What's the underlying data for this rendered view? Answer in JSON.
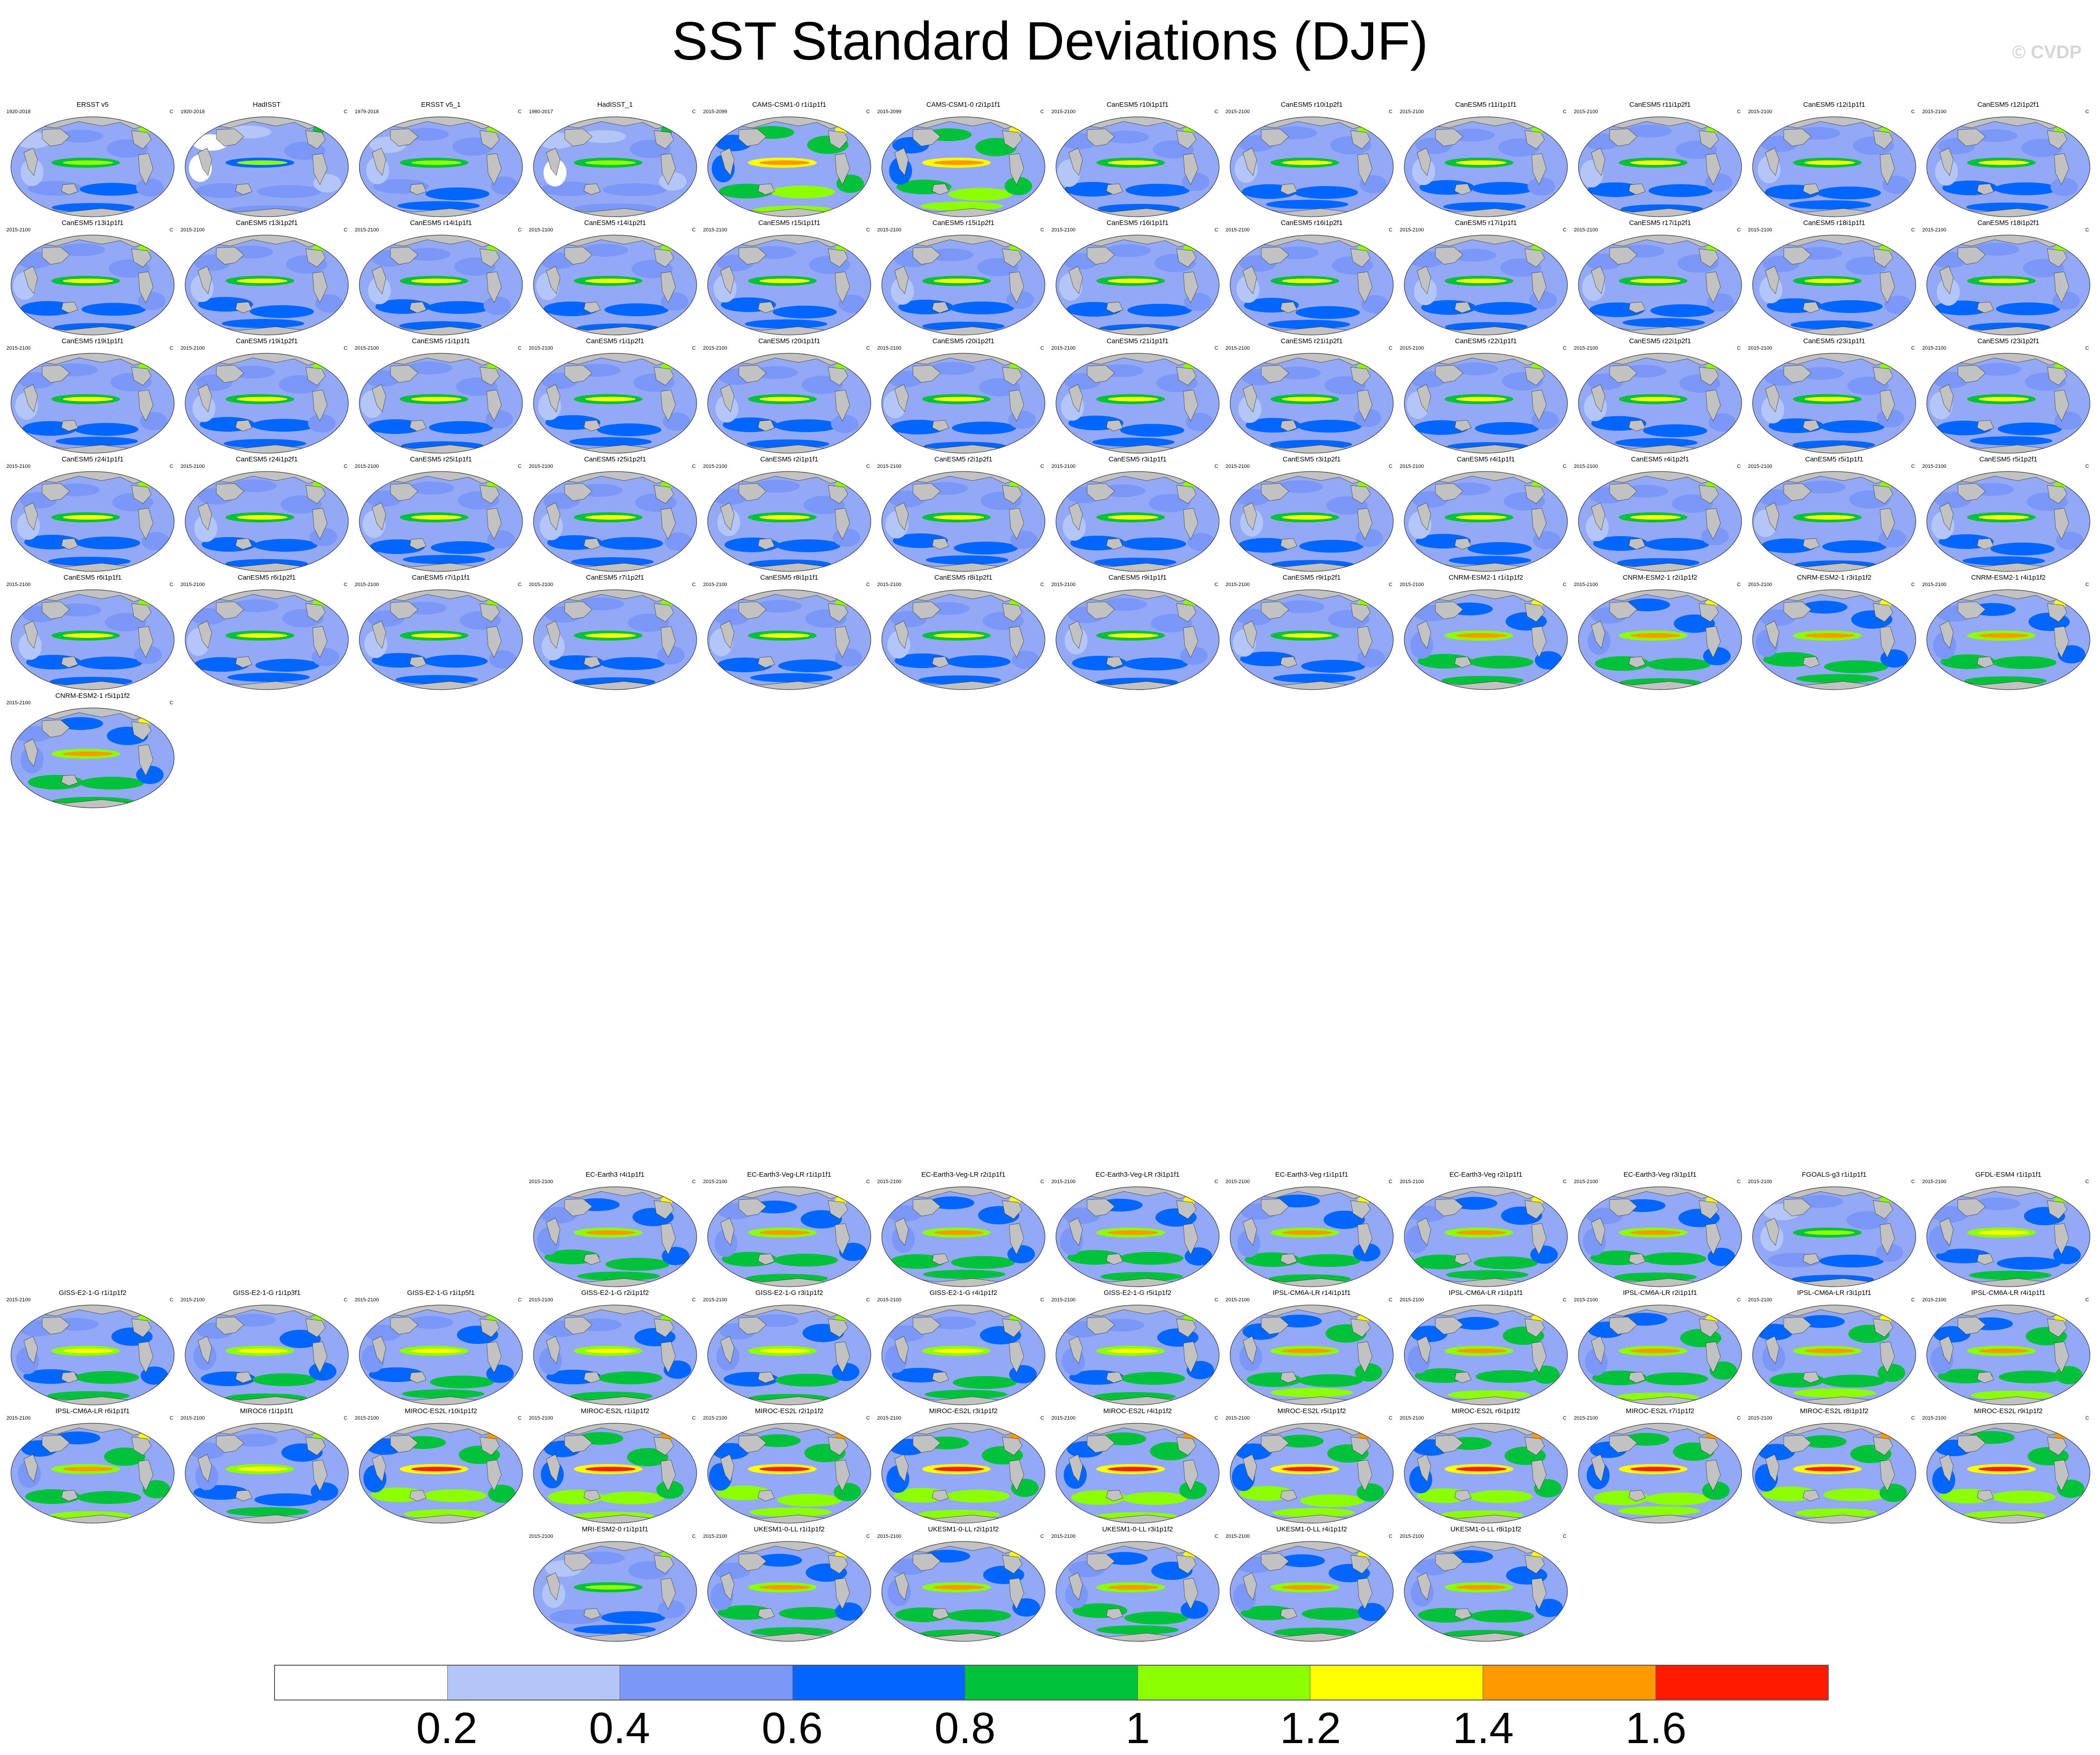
{
  "title": "SST Standard Deviations (DJF)",
  "watermark": "© CVDP",
  "unit": "C",
  "map_colors": {
    "land": "#c2c2c2",
    "ocean_base": "#93a9f5",
    "outline": "#333333"
  },
  "colorbar": {
    "colors": [
      "#ffffff",
      "#b3c6f7",
      "#7b97f8",
      "#0066ff",
      "#00c23a",
      "#8cff00",
      "#ffff00",
      "#ff9900",
      "#ff1a00"
    ],
    "labels": [
      "0.2",
      "0.4",
      "0.6",
      "0.8",
      "1",
      "1.2",
      "1.4",
      "1.6"
    ]
  },
  "groups": [
    {
      "panels": [
        {
          "title": "ERSST v5",
          "period": "1920-2018",
          "level": 0.4
        },
        {
          "title": "HadISST",
          "period": "1920-2018",
          "level": 0.3
        },
        {
          "title": "ERSST v5_1",
          "period": "1979-2018",
          "level": 0.4
        },
        {
          "title": "HadISST_1",
          "period": "1980-2017",
          "level": 0.35
        },
        {
          "title": "CAMS-CSM1-0 r1i1p1f1",
          "period": "2015-2099",
          "level": 0.8
        },
        {
          "title": "CAMS-CSM1-0 r2i1p1f1",
          "period": "2015-2099",
          "level": 0.8
        },
        {
          "title": "CanESM5 r10i1p1f1",
          "period": "2015-2100",
          "level": 0.5
        },
        {
          "title": "CanESM5 r10i1p2f1",
          "period": "2015-2100",
          "level": 0.5
        },
        {
          "title": "CanESM5 r11i1p1f1",
          "period": "2015-2100",
          "level": 0.5
        },
        {
          "title": "CanESM5 r11i1p2f1",
          "period": "2015-2100",
          "level": 0.5
        },
        {
          "title": "CanESM5 r12i1p1f1",
          "period": "2015-2100",
          "level": 0.5
        },
        {
          "title": "CanESM5 r12i1p2f1",
          "period": "2015-2100",
          "level": 0.5
        },
        {
          "title": "CanESM5 r13i1p1f1",
          "period": "2015-2100",
          "level": 0.5
        },
        {
          "title": "CanESM5 r13i1p2f1",
          "period": "2015-2100",
          "level": 0.5
        },
        {
          "title": "CanESM5 r14i1p1f1",
          "period": "2015-2100",
          "level": 0.5
        },
        {
          "title": "CanESM5 r14i1p2f1",
          "period": "2015-2100",
          "level": 0.5
        },
        {
          "title": "CanESM5 r15i1p1f1",
          "period": "2015-2100",
          "level": 0.5
        },
        {
          "title": "CanESM5 r15i1p2f1",
          "period": "2015-2100",
          "level": 0.5
        },
        {
          "title": "CanESM5 r16i1p1f1",
          "period": "2015-2100",
          "level": 0.5
        },
        {
          "title": "CanESM5 r16i1p2f1",
          "period": "2015-2100",
          "level": 0.5
        },
        {
          "title": "CanESM5 r17i1p1f1",
          "period": "2015-2100",
          "level": 0.5
        },
        {
          "title": "CanESM5 r17i1p2f1",
          "period": "2015-2100",
          "level": 0.5
        },
        {
          "title": "CanESM5 r18i1p1f1",
          "period": "2015-2100",
          "level": 0.5
        },
        {
          "title": "CanESM5 r18i1p2f1",
          "period": "2015-2100",
          "level": 0.5
        },
        {
          "title": "CanESM5 r19i1p1f1",
          "period": "2015-2100",
          "level": 0.5
        },
        {
          "title": "CanESM5 r19i1p2f1",
          "period": "2015-2100",
          "level": 0.5
        },
        {
          "title": "CanESM5 r1i1p1f1",
          "period": "2015-2100",
          "level": 0.5
        },
        {
          "title": "CanESM5 r1i1p2f1",
          "period": "2015-2100",
          "level": 0.5
        },
        {
          "title": "CanESM5 r20i1p1f1",
          "period": "2015-2100",
          "level": 0.5
        },
        {
          "title": "CanESM5 r20i1p2f1",
          "period": "2015-2100",
          "level": 0.5
        },
        {
          "title": "CanESM5 r21i1p1f1",
          "period": "2015-2100",
          "level": 0.5
        },
        {
          "title": "CanESM5 r21i1p2f1",
          "period": "2015-2100",
          "level": 0.5
        },
        {
          "title": "CanESM5 r22i1p1f1",
          "period": "2015-2100",
          "level": 0.5
        },
        {
          "title": "CanESM5 r22i1p2f1",
          "period": "2015-2100",
          "level": 0.5
        },
        {
          "title": "CanESM5 r23i1p1f1",
          "period": "2015-2100",
          "level": 0.5
        },
        {
          "title": "CanESM5 r23i1p2f1",
          "period": "2015-2100",
          "level": 0.5
        },
        {
          "title": "CanESM5 r24i1p1f1",
          "period": "2015-2100",
          "level": 0.5
        },
        {
          "title": "CanESM5 r24i1p2f1",
          "period": "2015-2100",
          "level": 0.5
        },
        {
          "title": "CanESM5 r25i1p1f1",
          "period": "2015-2100",
          "level": 0.5
        },
        {
          "title": "CanESM5 r25i1p2f1",
          "period": "2015-2100",
          "level": 0.5
        },
        {
          "title": "CanESM5 r2i1p1f1",
          "period": "2015-2100",
          "level": 0.5
        },
        {
          "title": "CanESM5 r2i1p2f1",
          "period": "2015-2100",
          "level": 0.5
        },
        {
          "title": "CanESM5 r3i1p1f1",
          "period": "2015-2100",
          "level": 0.5
        },
        {
          "title": "CanESM5 r3i1p2f1",
          "period": "2015-2100",
          "level": 0.5
        },
        {
          "title": "CanESM5 r4i1p1f1",
          "period": "2015-2100",
          "level": 0.5
        },
        {
          "title": "CanESM5 r4i1p2f1",
          "period": "2015-2100",
          "level": 0.5
        },
        {
          "title": "CanESM5 r5i1p1f1",
          "period": "2015-2100",
          "level": 0.5
        },
        {
          "title": "CanESM5 r5i1p2f1",
          "period": "2015-2100",
          "level": 0.5
        },
        {
          "title": "CanESM5 r6i1p1f1",
          "period": "2015-2100",
          "level": 0.5
        },
        {
          "title": "CanESM5 r6i1p2f1",
          "period": "2015-2100",
          "level": 0.5
        },
        {
          "title": "CanESM5 r7i1p1f1",
          "period": "2015-2100",
          "level": 0.5
        },
        {
          "title": "CanESM5 r7i1p2f1",
          "period": "2015-2100",
          "level": 0.5
        },
        {
          "title": "CanESM5 r8i1p1f1",
          "period": "2015-2100",
          "level": 0.5
        },
        {
          "title": "CanESM5 r8i1p2f1",
          "period": "2015-2100",
          "level": 0.5
        },
        {
          "title": "CanESM5 r9i1p1f1",
          "period": "2015-2100",
          "level": 0.5
        },
        {
          "title": "CanESM5 r9i1p2f1",
          "period": "2015-2100",
          "level": 0.5
        },
        {
          "title": "CNRM-ESM2-1 r1i1p1f2",
          "period": "2015-2100",
          "level": 0.7
        },
        {
          "title": "CNRM-ESM2-1 r2i1p1f2",
          "period": "2015-2100",
          "level": 0.7
        },
        {
          "title": "CNRM-ESM2-1 r3i1p1f2",
          "period": "2015-2100",
          "level": 0.7
        },
        {
          "title": "CNRM-ESM2-1 r4i1p1f2",
          "period": "2015-2100",
          "level": 0.7
        },
        {
          "title": "CNRM-ESM2-1 r5i1p1f2",
          "period": "2015-2100",
          "level": 0.7
        }
      ]
    },
    {
      "panels": [
        {
          "title": "EC-Earth3 r4i1p1f1",
          "period": "2015-2100",
          "level": 0.7
        },
        {
          "title": "EC-Earth3-Veg-LR r1i1p1f1",
          "period": "2015-2100",
          "level": 0.7
        },
        {
          "title": "EC-Earth3-Veg-LR r2i1p1f1",
          "period": "2015-2100",
          "level": 0.7
        },
        {
          "title": "EC-Earth3-Veg-LR r3i1p1f1",
          "period": "2015-2100",
          "level": 0.7
        },
        {
          "title": "EC-Earth3-Veg r1i1p1f1",
          "period": "2015-2100",
          "level": 0.7
        },
        {
          "title": "EC-Earth3-Veg r2i1p1f1",
          "period": "2015-2100",
          "level": 0.7
        },
        {
          "title": "EC-Earth3-Veg r3i1p1f1",
          "period": "2015-2100",
          "level": 0.7
        },
        {
          "title": "FGOALS-g3 r1i1p1f1",
          "period": "2015-2100",
          "level": 0.4
        },
        {
          "title": "GFDL-ESM4 r1i1p1f1",
          "period": "2015-2100",
          "level": 0.55
        },
        {
          "title": "GISS-E2-1-G r1i1p1f2",
          "period": "2015-2100",
          "level": 0.6
        },
        {
          "title": "GISS-E2-1-G r1i1p3f1",
          "period": "2015-2100",
          "level": 0.6
        },
        {
          "title": "GISS-E2-1-G r1i1p5f1",
          "period": "2015-2100",
          "level": 0.6
        },
        {
          "title": "GISS-E2-1-G r2i1p1f2",
          "period": "2015-2100",
          "level": 0.6
        },
        {
          "title": "GISS-E2-1-G r3i1p1f2",
          "period": "2015-2100",
          "level": 0.6
        },
        {
          "title": "GISS-E2-1-G r4i1p1f2",
          "period": "2015-2100",
          "level": 0.6
        },
        {
          "title": "GISS-E2-1-G r5i1p1f2",
          "period": "2015-2100",
          "level": 0.6
        },
        {
          "title": "IPSL-CM6A-LR r14i1p1f1",
          "period": "2015-2100",
          "level": 0.75
        },
        {
          "title": "IPSL-CM6A-LR r1i1p1f1",
          "period": "2015-2100",
          "level": 0.75
        },
        {
          "title": "IPSL-CM6A-LR r2i1p1f1",
          "period": "2015-2100",
          "level": 0.75
        },
        {
          "title": "IPSL-CM6A-LR r3i1p1f1",
          "period": "2015-2100",
          "level": 0.75
        },
        {
          "title": "IPSL-CM6A-LR r4i1p1f1",
          "period": "2015-2100",
          "level": 0.75
        },
        {
          "title": "IPSL-CM6A-LR r6i1p1f1",
          "period": "2015-2100",
          "level": 0.75
        },
        {
          "title": "MIROC6 r1i1p1f1",
          "period": "2015-2100",
          "level": 0.55
        },
        {
          "title": "MIROC-ES2L r10i1p1f2",
          "period": "2015-2100",
          "level": 0.85
        },
        {
          "title": "MIROC-ES2L r1i1p1f2",
          "period": "2015-2100",
          "level": 0.85
        },
        {
          "title": "MIROC-ES2L r2i1p1f2",
          "period": "2015-2100",
          "level": 0.85
        },
        {
          "title": "MIROC-ES2L r3i1p1f2",
          "period": "2015-2100",
          "level": 0.85
        },
        {
          "title": "MIROC-ES2L r4i1p1f2",
          "period": "2015-2100",
          "level": 0.85
        },
        {
          "title": "MIROC-ES2L r5i1p1f2",
          "period": "2015-2100",
          "level": 0.85
        },
        {
          "title": "MIROC-ES2L r6i1p1f2",
          "period": "2015-2100",
          "level": 0.85
        },
        {
          "title": "MIROC-ES2L r7i1p1f2",
          "period": "2015-2100",
          "level": 0.85
        },
        {
          "title": "MIROC-ES2L r8i1p1f2",
          "period": "2015-2100",
          "level": 0.85
        },
        {
          "title": "MIROC-ES2L r9i1p1f2",
          "period": "2015-2100",
          "level": 0.85
        },
        {
          "title": "MRI-ESM2-0 r1i1p1f1",
          "period": "2015-2100",
          "level": 0.45
        },
        {
          "title": "UKESM1-0-LL r1i1p1f2",
          "period": "2015-2100",
          "level": 0.7
        },
        {
          "title": "UKESM1-0-LL r2i1p1f2",
          "period": "2015-2100",
          "level": 0.7
        },
        {
          "title": "UKESM1-0-LL r3i1p1f2",
          "period": "2015-2100",
          "level": 0.7
        },
        {
          "title": "UKESM1-0-LL r4i1p1f2",
          "period": "2015-2100",
          "level": 0.7
        },
        {
          "title": "UKESM1-0-LL r8i1p1f2",
          "period": "2015-2100",
          "level": 0.7
        }
      ]
    }
  ]
}
